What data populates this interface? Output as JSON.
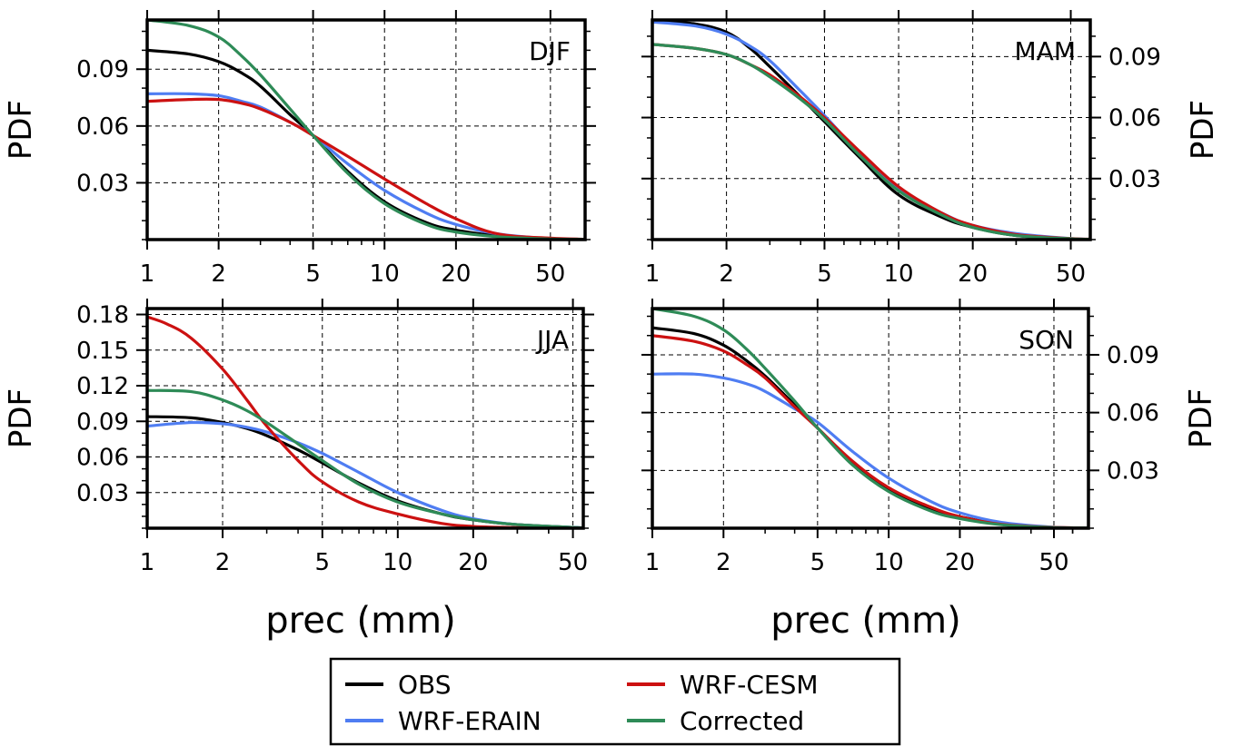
{
  "chart_data": [
    {
      "type": "line",
      "panel": "DJF",
      "ylabel": "PDF",
      "xlabel": "",
      "xscale": "log",
      "xlim": [
        1,
        70
      ],
      "ylim": [
        0.0,
        0.116
      ],
      "xticks": [
        1,
        2,
        5,
        10,
        20,
        50
      ],
      "xtick_labels": [
        "1",
        "2",
        "5",
        "10",
        "20",
        "50"
      ],
      "yticks": [
        0.03,
        0.06,
        0.09
      ],
      "ytick_labels": [
        "0.03",
        "0.06",
        "0.09"
      ],
      "yaxis_side": "left",
      "grid": true,
      "series": [
        {
          "name": "OBS",
          "color": "#000000",
          "x": [
            1,
            1.5,
            2,
            2.5,
            3,
            4,
            5,
            7,
            10,
            15,
            20,
            30,
            50,
            70
          ],
          "y": [
            0.1,
            0.098,
            0.094,
            0.088,
            0.081,
            0.066,
            0.055,
            0.036,
            0.02,
            0.009,
            0.005,
            0.002,
            0.0003,
            0.0001
          ]
        },
        {
          "name": "WRF-ERAIN",
          "color": "#4f7df2",
          "x": [
            1,
            1.5,
            2,
            2.5,
            3,
            4,
            5,
            7,
            10,
            15,
            20,
            30,
            50,
            70
          ],
          "y": [
            0.077,
            0.077,
            0.076,
            0.073,
            0.07,
            0.062,
            0.055,
            0.04,
            0.026,
            0.014,
            0.008,
            0.003,
            0.0005,
            0.0001
          ]
        },
        {
          "name": "WRF-CESM",
          "color": "#cc1111",
          "x": [
            1,
            1.5,
            2,
            2.5,
            3,
            4,
            5,
            7,
            10,
            15,
            20,
            30,
            50,
            70
          ],
          "y": [
            0.073,
            0.074,
            0.074,
            0.072,
            0.069,
            0.062,
            0.055,
            0.044,
            0.032,
            0.019,
            0.011,
            0.003,
            0.0008,
            0.0002
          ]
        },
        {
          "name": "Corrected",
          "color": "#2e8b57",
          "x": [
            1,
            1.5,
            2,
            2.5,
            3,
            4,
            5,
            7,
            10,
            15,
            20,
            30,
            50,
            70
          ],
          "y": [
            0.116,
            0.113,
            0.107,
            0.097,
            0.087,
            0.069,
            0.055,
            0.035,
            0.019,
            0.008,
            0.004,
            0.0015,
            0.0003,
            0.0001
          ]
        }
      ]
    },
    {
      "type": "line",
      "panel": "MAM",
      "ylabel": "PDF",
      "xlabel": "",
      "xscale": "log",
      "xlim": [
        1,
        60
      ],
      "ylim": [
        0.0,
        0.108
      ],
      "xticks": [
        1,
        2,
        5,
        10,
        20,
        50
      ],
      "xtick_labels": [
        "1",
        "2",
        "5",
        "10",
        "20",
        "50"
      ],
      "yticks": [
        0.03,
        0.06,
        0.09
      ],
      "ytick_labels": [
        "0.03",
        "0.06",
        "0.09"
      ],
      "yaxis_side": "right",
      "grid": true,
      "series": [
        {
          "name": "OBS",
          "color": "#000000",
          "x": [
            1,
            1.5,
            2,
            2.5,
            3,
            4,
            5,
            7,
            10,
            15,
            20,
            30,
            50,
            60
          ],
          "y": [
            0.108,
            0.106,
            0.102,
            0.094,
            0.085,
            0.07,
            0.058,
            0.04,
            0.022,
            0.011,
            0.006,
            0.002,
            0.0004,
            0.0002
          ]
        },
        {
          "name": "WRF-ERAIN",
          "color": "#4f7df2",
          "x": [
            1,
            1.5,
            2,
            2.5,
            3,
            4,
            5,
            7,
            10,
            15,
            20,
            30,
            50,
            60
          ],
          "y": [
            0.107,
            0.105,
            0.101,
            0.095,
            0.088,
            0.073,
            0.061,
            0.042,
            0.025,
            0.013,
            0.007,
            0.003,
            0.0005,
            0.0002
          ]
        },
        {
          "name": "WRF-CESM",
          "color": "#cc1111",
          "x": [
            1,
            1.5,
            2,
            2.5,
            3,
            4,
            5,
            7,
            10,
            15,
            20,
            30,
            50,
            60
          ],
          "y": [
            0.096,
            0.094,
            0.091,
            0.086,
            0.081,
            0.07,
            0.06,
            0.043,
            0.026,
            0.013,
            0.007,
            0.0025,
            0.0005,
            0.0002
          ]
        },
        {
          "name": "Corrected",
          "color": "#2e8b57",
          "x": [
            1,
            1.5,
            2,
            2.5,
            3,
            4,
            5,
            7,
            10,
            15,
            20,
            30,
            50,
            60
          ],
          "y": [
            0.096,
            0.094,
            0.091,
            0.086,
            0.08,
            0.069,
            0.059,
            0.041,
            0.024,
            0.012,
            0.006,
            0.002,
            0.0004,
            0.0002
          ]
        }
      ]
    },
    {
      "type": "line",
      "panel": "JJA",
      "ylabel": "PDF",
      "xlabel": "prec (mm)",
      "xscale": "log",
      "xlim": [
        1,
        55
      ],
      "ylim": [
        0.0,
        0.185
      ],
      "xticks": [
        1,
        2,
        5,
        10,
        20,
        50
      ],
      "xtick_labels": [
        "1",
        "2",
        "5",
        "10",
        "20",
        "50"
      ],
      "yticks": [
        0.03,
        0.06,
        0.09,
        0.12,
        0.15,
        0.18
      ],
      "ytick_labels": [
        "0.03",
        "0.06",
        "0.09",
        "0.12",
        "0.15",
        "0.18"
      ],
      "yaxis_side": "left",
      "grid": true,
      "series": [
        {
          "name": "OBS",
          "color": "#000000",
          "x": [
            1,
            1.5,
            2,
            2.5,
            3,
            4,
            5,
            7,
            10,
            15,
            20,
            30,
            55
          ],
          "y": [
            0.094,
            0.093,
            0.089,
            0.084,
            0.078,
            0.066,
            0.055,
            0.038,
            0.023,
            0.012,
            0.007,
            0.003,
            0.0003
          ]
        },
        {
          "name": "WRF-ERAIN",
          "color": "#4f7df2",
          "x": [
            1,
            1.5,
            2,
            2.5,
            3,
            4,
            5,
            7,
            10,
            15,
            20,
            30,
            55
          ],
          "y": [
            0.086,
            0.089,
            0.088,
            0.085,
            0.081,
            0.072,
            0.063,
            0.047,
            0.03,
            0.015,
            0.008,
            0.003,
            0.0003
          ]
        },
        {
          "name": "WRF-CESM",
          "color": "#cc1111",
          "x": [
            1,
            1.2,
            1.5,
            2,
            2.5,
            3,
            4,
            5,
            7,
            10,
            15,
            20,
            30,
            55
          ],
          "y": [
            0.178,
            0.172,
            0.16,
            0.134,
            0.108,
            0.086,
            0.057,
            0.039,
            0.022,
            0.012,
            0.004,
            0.0015,
            0.0005,
            0.0001
          ]
        },
        {
          "name": "Corrected",
          "color": "#2e8b57",
          "x": [
            1,
            1.5,
            2,
            2.5,
            3,
            4,
            5,
            7,
            10,
            15,
            20,
            30,
            55
          ],
          "y": [
            0.116,
            0.115,
            0.108,
            0.099,
            0.089,
            0.071,
            0.057,
            0.037,
            0.022,
            0.012,
            0.007,
            0.003,
            0.0003
          ]
        }
      ]
    },
    {
      "type": "line",
      "panel": "SON",
      "ylabel": "PDF",
      "xlabel": "prec (mm)",
      "xscale": "log",
      "xlim": [
        1,
        70
      ],
      "ylim": [
        0.0,
        0.114
      ],
      "xticks": [
        1,
        2,
        5,
        10,
        20,
        50
      ],
      "xtick_labels": [
        "1",
        "2",
        "5",
        "10",
        "20",
        "50"
      ],
      "yticks": [
        0.03,
        0.06,
        0.09
      ],
      "ytick_labels": [
        "0.03",
        "0.06",
        "0.09"
      ],
      "yaxis_side": "right",
      "grid": true,
      "series": [
        {
          "name": "OBS",
          "color": "#000000",
          "x": [
            1,
            1.5,
            2,
            2.5,
            3,
            4,
            5,
            7,
            10,
            15,
            20,
            30,
            50,
            70
          ],
          "y": [
            0.104,
            0.101,
            0.095,
            0.087,
            0.079,
            0.064,
            0.052,
            0.034,
            0.02,
            0.01,
            0.006,
            0.002,
            0.0004,
            0.0001
          ]
        },
        {
          "name": "WRF-ERAIN",
          "color": "#4f7df2",
          "x": [
            1,
            1.5,
            2,
            2.5,
            3,
            4,
            5,
            7,
            10,
            15,
            20,
            30,
            50,
            70
          ],
          "y": [
            0.08,
            0.08,
            0.078,
            0.075,
            0.071,
            0.062,
            0.055,
            0.04,
            0.026,
            0.014,
            0.008,
            0.003,
            0.0005,
            0.0001
          ]
        },
        {
          "name": "WRF-CESM",
          "color": "#cc1111",
          "x": [
            1,
            1.5,
            2,
            2.5,
            3,
            4,
            5,
            7,
            10,
            15,
            20,
            30,
            50,
            70
          ],
          "y": [
            0.1,
            0.097,
            0.092,
            0.085,
            0.078,
            0.063,
            0.052,
            0.035,
            0.021,
            0.011,
            0.006,
            0.002,
            0.0004,
            0.0001
          ]
        },
        {
          "name": "Corrected",
          "color": "#2e8b57",
          "x": [
            1,
            1.5,
            2,
            2.5,
            3,
            4,
            5,
            7,
            10,
            15,
            20,
            30,
            50,
            70
          ],
          "y": [
            0.114,
            0.11,
            0.103,
            0.093,
            0.083,
            0.066,
            0.052,
            0.033,
            0.019,
            0.009,
            0.005,
            0.0018,
            0.0003,
            0.0001
          ]
        }
      ]
    }
  ],
  "legend": {
    "entries": [
      {
        "label": "OBS",
        "color": "#000000"
      },
      {
        "label": "WRF-ERAIN",
        "color": "#4f7df2"
      },
      {
        "label": "WRF-CESM",
        "color": "#cc1111"
      },
      {
        "label": "Corrected",
        "color": "#2e8b57"
      }
    ]
  }
}
